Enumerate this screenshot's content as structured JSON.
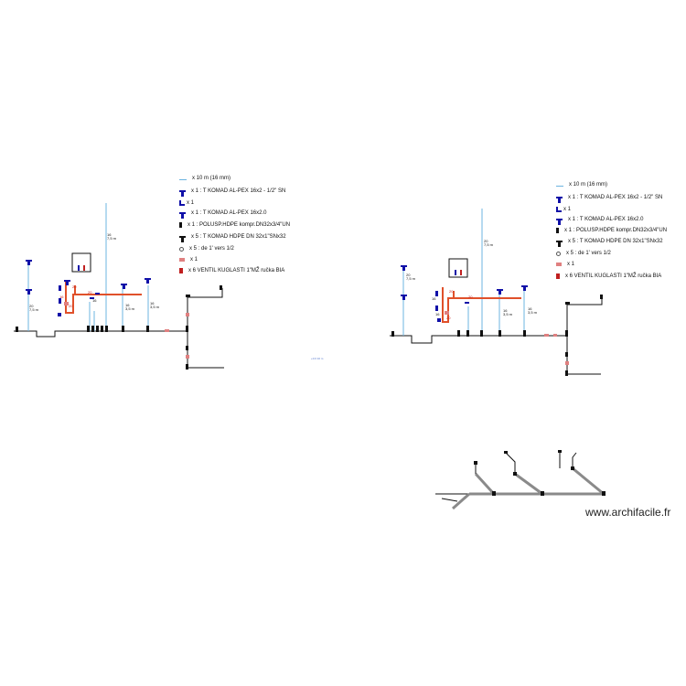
{
  "legend_left": {
    "items": [
      {
        "icon": "pipe-line-icon",
        "text": "x 10 m (16 mm)"
      },
      {
        "icon": "blue-tee-icon",
        "text": "x 1 : T KOMAD AL-PEX 16x2 - 1/2\" SN"
      },
      {
        "icon": "blue-elbow-icon",
        "text": "x 1"
      },
      {
        "icon": "blue-tee-icon",
        "text": "x 1 : T KOMAD AL-PEX 16x2.0"
      },
      {
        "icon": "black-coupling-icon",
        "text": "x 1 : POLUSP.HDPE kompr.DN32x3/4\"UN"
      },
      {
        "icon": "black-tee-icon",
        "text": "x 5 : T KOMAD HDPE DN 32x1\"SNx32"
      },
      {
        "icon": "small-fitting-icon",
        "text": "x 5 : de 1' vers 1/2"
      },
      {
        "icon": "red-fitting-icon",
        "text": "x 1"
      },
      {
        "icon": "valve-icon",
        "text": "x 6 VENTIL KUGLASTI 1\"MŽ ručka BIA"
      }
    ]
  },
  "legend_right": {
    "items": [
      {
        "icon": "pipe-line-icon",
        "text": "x 10 m (16 mm)"
      },
      {
        "icon": "blue-tee-icon",
        "text": "x 1 : T KOMAD AL-PEX 16x2 - 1/2\" SN"
      },
      {
        "icon": "blue-elbow-icon",
        "text": "x 1"
      },
      {
        "icon": "blue-tee-icon",
        "text": "x 1 : T KOMAD AL-PEX 16x2.0"
      },
      {
        "icon": "black-coupling-icon",
        "text": "x 1 : POLUSP.HDPE kompr.DN32x3/4\"UN"
      },
      {
        "icon": "black-tee-icon",
        "text": "x 5 : T KOMAD HDPE DN 32x1\"SNx32"
      },
      {
        "icon": "small-fitting-icon",
        "text": "x 5 : de 1' vers 1/2"
      },
      {
        "icon": "red-fitting-icon",
        "text": "x 1"
      },
      {
        "icon": "valve-icon",
        "text": "x 6 VENTIL KUGLASTI 1\"MŽ ručka BIA"
      }
    ]
  },
  "left_plan_labels": {
    "riser_top": "16\n7,5 m",
    "left_riser": "20\n7,5 m",
    "mid_a": "16\n3,5 m",
    "mid_b": "16\n3,5 m",
    "red_a": "20",
    "red_b": "20",
    "red_c": "20",
    "red_d": "16",
    "red_e": "16"
  },
  "right_plan_labels": {
    "riser_top": "20\n7,5 m",
    "left_riser": "20\n7,5 m",
    "mid_a": "16\n3,5 m",
    "mid_b": "16\n3,5 m",
    "red_a": "20",
    "red_b": "20",
    "red_c": "16",
    "red_d": "16",
    "red_e": "20"
  },
  "tiny_note": "+0.0 10 m",
  "watermark": "www.archifacile.fr",
  "colors": {
    "pipe_blue": "#6cb4e0",
    "fitting_blue": "#1010a8",
    "main_black": "#111111",
    "branch_orange": "#e0502a",
    "grey_pipe": "#9a9a9a",
    "valve_red": "#c02020"
  }
}
